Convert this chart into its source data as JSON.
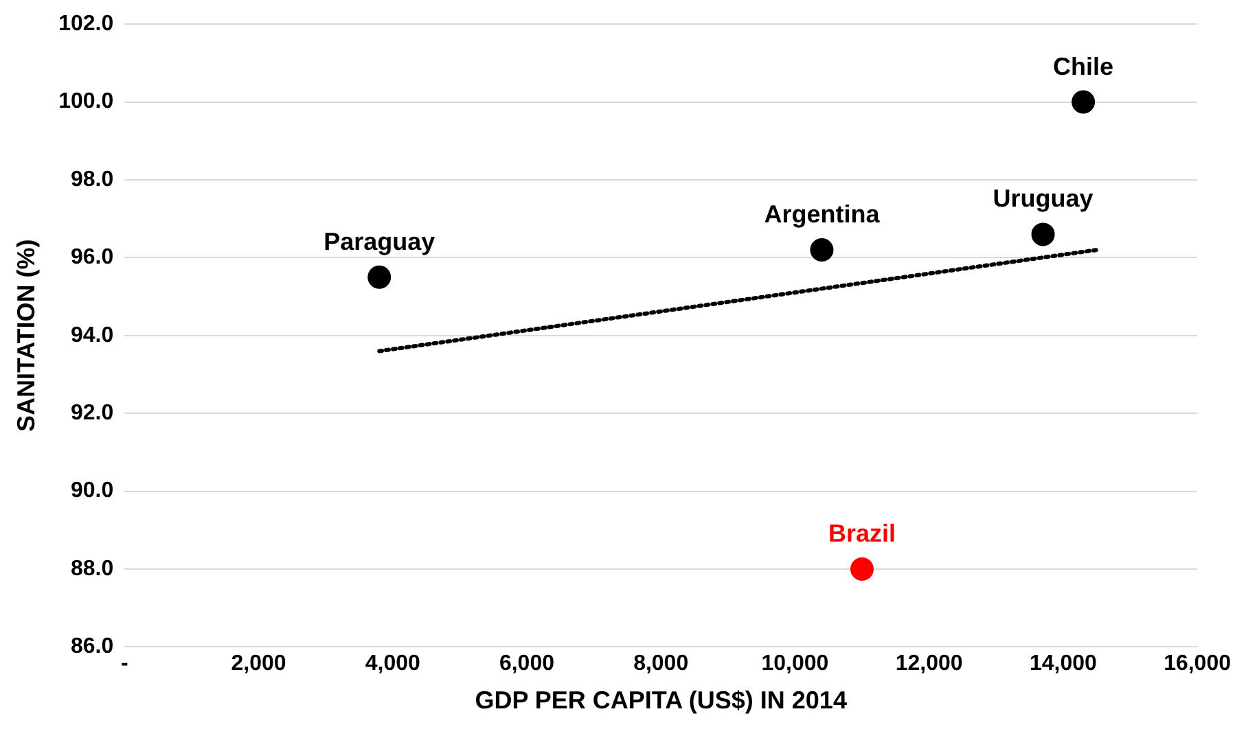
{
  "chart_data": {
    "type": "scatter",
    "xlabel": "GDP PER CAPITA (US$) IN 2014",
    "ylabel": "SANITATION (%)",
    "xlim": [
      0,
      16000
    ],
    "xticks": [
      {
        "value": 0,
        "label": "-"
      },
      {
        "value": 2000,
        "label": "2,000"
      },
      {
        "value": 4000,
        "label": "4,000"
      },
      {
        "value": 6000,
        "label": "6,000"
      },
      {
        "value": 8000,
        "label": "8,000"
      },
      {
        "value": 10000,
        "label": "10,000"
      },
      {
        "value": 12000,
        "label": "12,000"
      },
      {
        "value": 14000,
        "label": "14,000"
      },
      {
        "value": 16000,
        "label": "16,000"
      }
    ],
    "ylim": [
      86,
      102
    ],
    "yticks": [
      {
        "value": 86,
        "label": "86.0"
      },
      {
        "value": 88,
        "label": "88.0"
      },
      {
        "value": 90,
        "label": "90.0"
      },
      {
        "value": 92,
        "label": "92.0"
      },
      {
        "value": 94,
        "label": "94.0"
      },
      {
        "value": 96,
        "label": "96.0"
      },
      {
        "value": 98,
        "label": "98.0"
      },
      {
        "value": 100,
        "label": "100.0"
      },
      {
        "value": 102,
        "label": "102.0"
      }
    ],
    "grid": "y",
    "legend": false,
    "marker": "circle",
    "series": [
      {
        "type": "line",
        "color": "#000000",
        "line_style": "dotted",
        "marker": "none",
        "x": [
          3800,
          14500
        ],
        "values": [
          93.6,
          96.2
        ]
      },
      {
        "name": "Paraguay",
        "color": "#000000",
        "x": [
          3800
        ],
        "values": [
          95.5
        ]
      },
      {
        "name": "Argentina",
        "color": "#000000",
        "x": [
          10400
        ],
        "values": [
          96.2
        ]
      },
      {
        "name": "Uruguay",
        "color": "#000000",
        "x": [
          13700
        ],
        "values": [
          96.6
        ]
      },
      {
        "name": "Chile",
        "color": "#000000",
        "x": [
          14300
        ],
        "values": [
          100.0
        ]
      },
      {
        "name": "Brazil",
        "color": "#ff0000",
        "x": [
          11000
        ],
        "values": [
          88.0
        ]
      }
    ]
  }
}
